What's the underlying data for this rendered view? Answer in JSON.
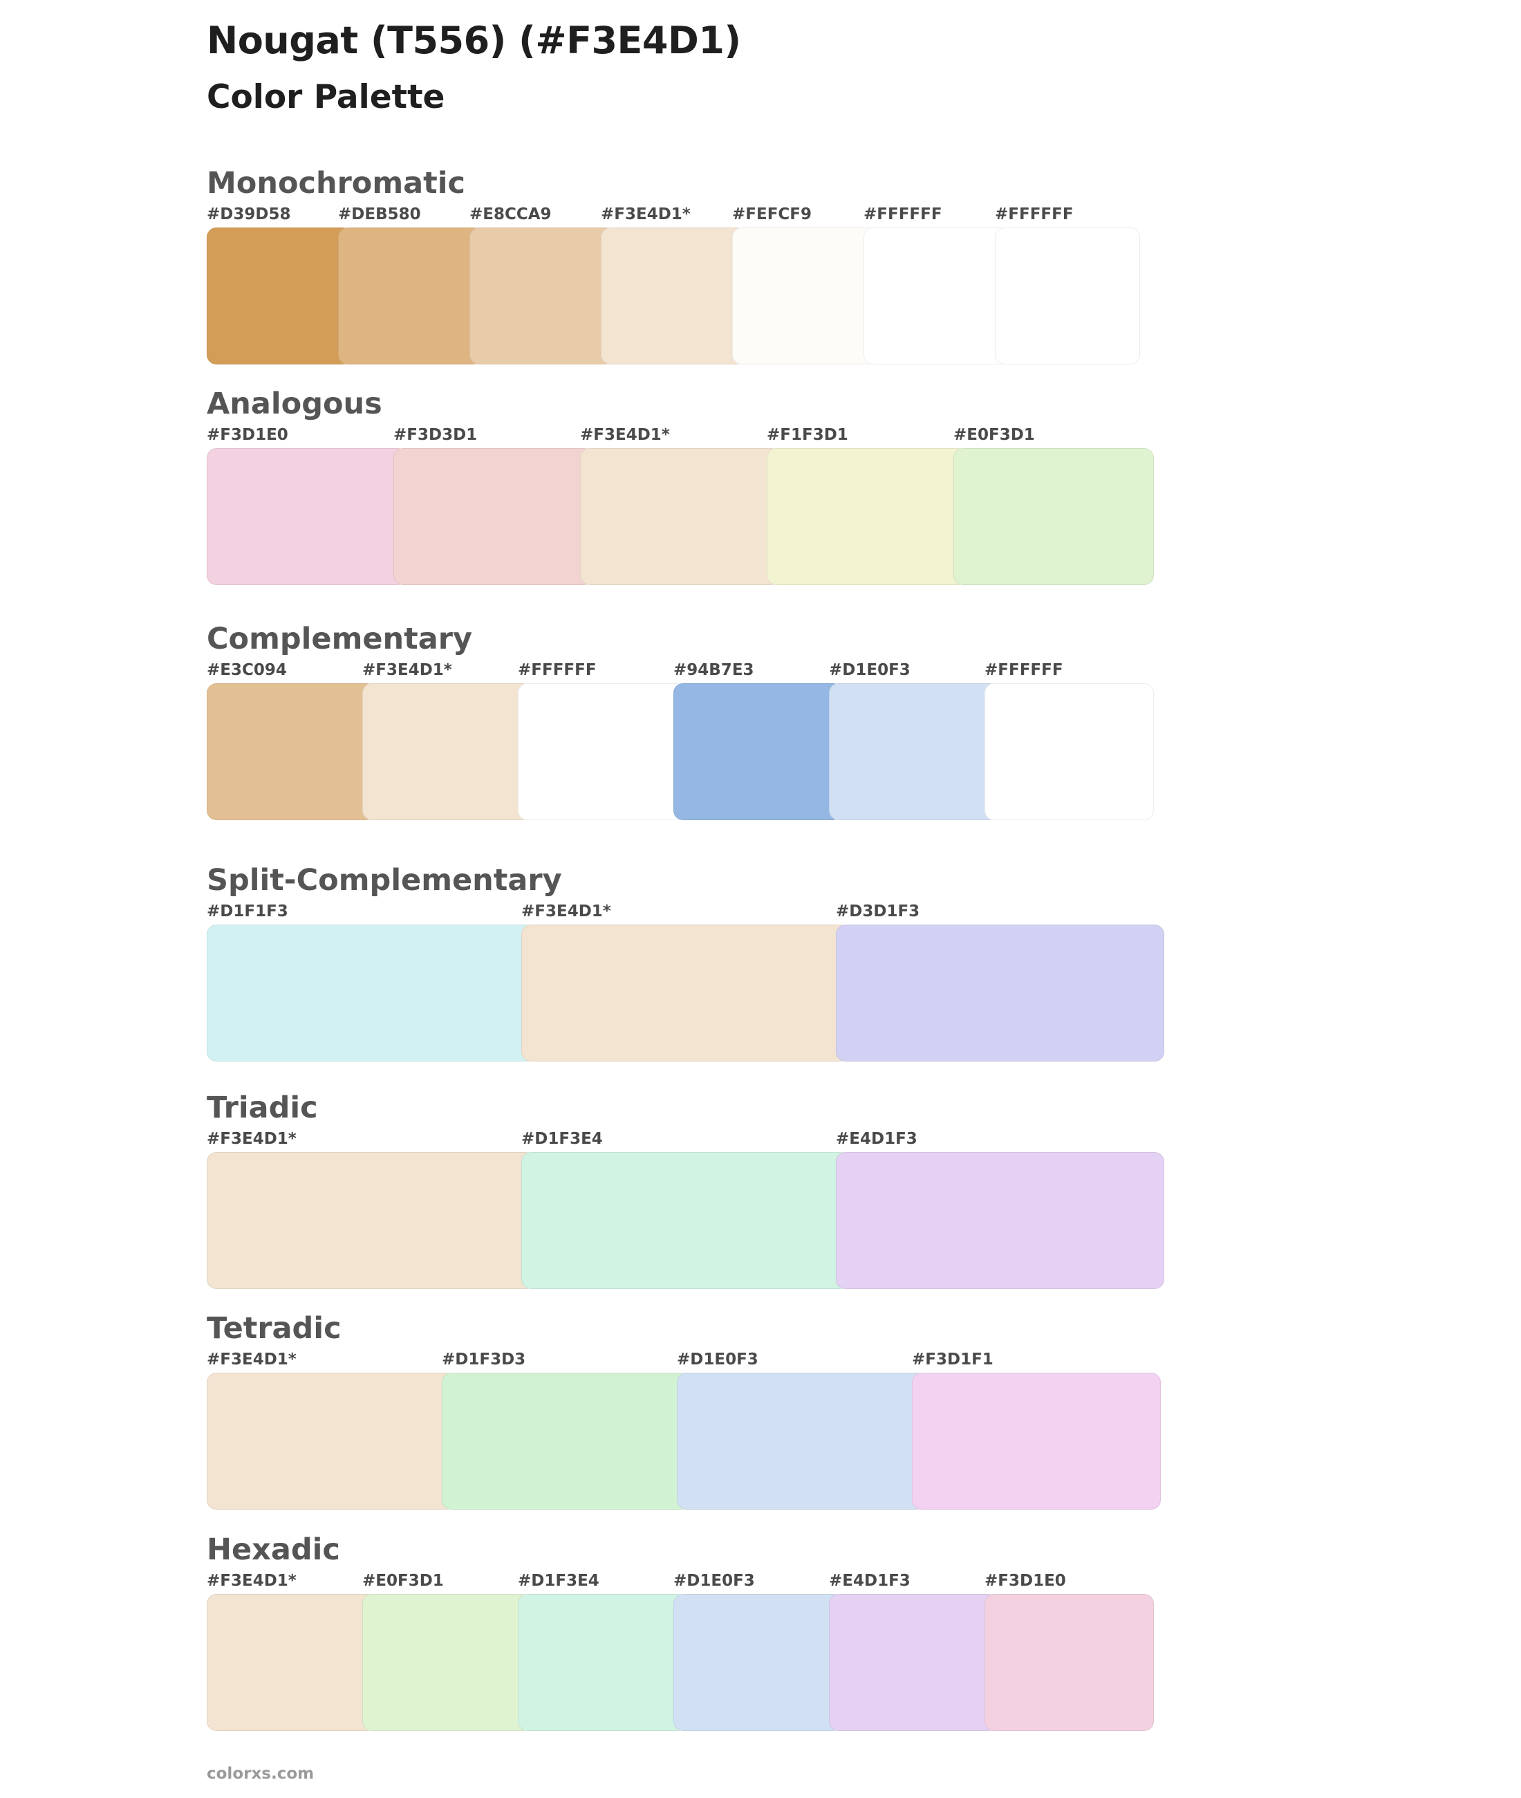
{
  "page": {
    "title": "Nougat (T556) (#F3E4D1)",
    "subtitle": "Color Palette",
    "footer": "colorxs.com"
  },
  "sections": [
    {
      "title": "Monochromatic",
      "swatches": [
        {
          "label": "#D39D58",
          "color": "#D39D58"
        },
        {
          "label": "#DEB580",
          "color": "#DEB580"
        },
        {
          "label": "#E8CCA9",
          "color": "#E8CCA9"
        },
        {
          "label": "#F3E4D1*",
          "color": "#F3E4D1"
        },
        {
          "label": "#FEFCF9",
          "color": "#FEFCF9"
        },
        {
          "label": "#FFFFFF",
          "color": "#FFFFFF"
        },
        {
          "label": "#FFFFFF",
          "color": "#FFFFFF"
        }
      ]
    },
    {
      "title": "Analogous",
      "swatches": [
        {
          "label": "#F3D1E0",
          "color": "#F3D1E0"
        },
        {
          "label": "#F3D3D1",
          "color": "#F3D3D1"
        },
        {
          "label": "#F3E4D1*",
          "color": "#F3E4D1"
        },
        {
          "label": "#F1F3D1",
          "color": "#F1F3D1"
        },
        {
          "label": "#E0F3D1",
          "color": "#E0F3D1"
        }
      ]
    },
    {
      "title": "Complementary",
      "swatches": [
        {
          "label": "#E3C094",
          "color": "#E3C094"
        },
        {
          "label": "#F3E4D1*",
          "color": "#F3E4D1"
        },
        {
          "label": "#FFFFFF",
          "color": "#FFFFFF"
        },
        {
          "label": "#94B7E3",
          "color": "#94B7E3"
        },
        {
          "label": "#D1E0F3",
          "color": "#D1E0F3"
        },
        {
          "label": "#FFFFFF",
          "color": "#FFFFFF"
        }
      ]
    },
    {
      "title": "Split-Complementary",
      "swatches": [
        {
          "label": "#D1F1F3",
          "color": "#D1F1F3"
        },
        {
          "label": "#F3E4D1*",
          "color": "#F3E4D1"
        },
        {
          "label": "#D3D1F3",
          "color": "#D3D1F3"
        }
      ]
    },
    {
      "title": "Triadic",
      "swatches": [
        {
          "label": "#F3E4D1*",
          "color": "#F3E4D1"
        },
        {
          "label": "#D1F3E4",
          "color": "#D1F3E4"
        },
        {
          "label": "#E4D1F3",
          "color": "#E4D1F3"
        }
      ]
    },
    {
      "title": "Tetradic",
      "swatches": [
        {
          "label": "#F3E4D1*",
          "color": "#F3E4D1"
        },
        {
          "label": "#D1F3D3",
          "color": "#D1F3D3"
        },
        {
          "label": "#D1E0F3",
          "color": "#D1E0F3"
        },
        {
          "label": "#F3D1F1",
          "color": "#F3D1F1"
        }
      ]
    },
    {
      "title": "Hexadic",
      "swatches": [
        {
          "label": "#F3E4D1*",
          "color": "#F3E4D1"
        },
        {
          "label": "#E0F3D1",
          "color": "#E0F3D1"
        },
        {
          "label": "#D1F3E4",
          "color": "#D1F3E4"
        },
        {
          "label": "#D1E0F3",
          "color": "#D1E0F3"
        },
        {
          "label": "#E4D1F3",
          "color": "#E4D1F3"
        },
        {
          "label": "#F3D1E0",
          "color": "#F3D1E0"
        }
      ]
    }
  ]
}
